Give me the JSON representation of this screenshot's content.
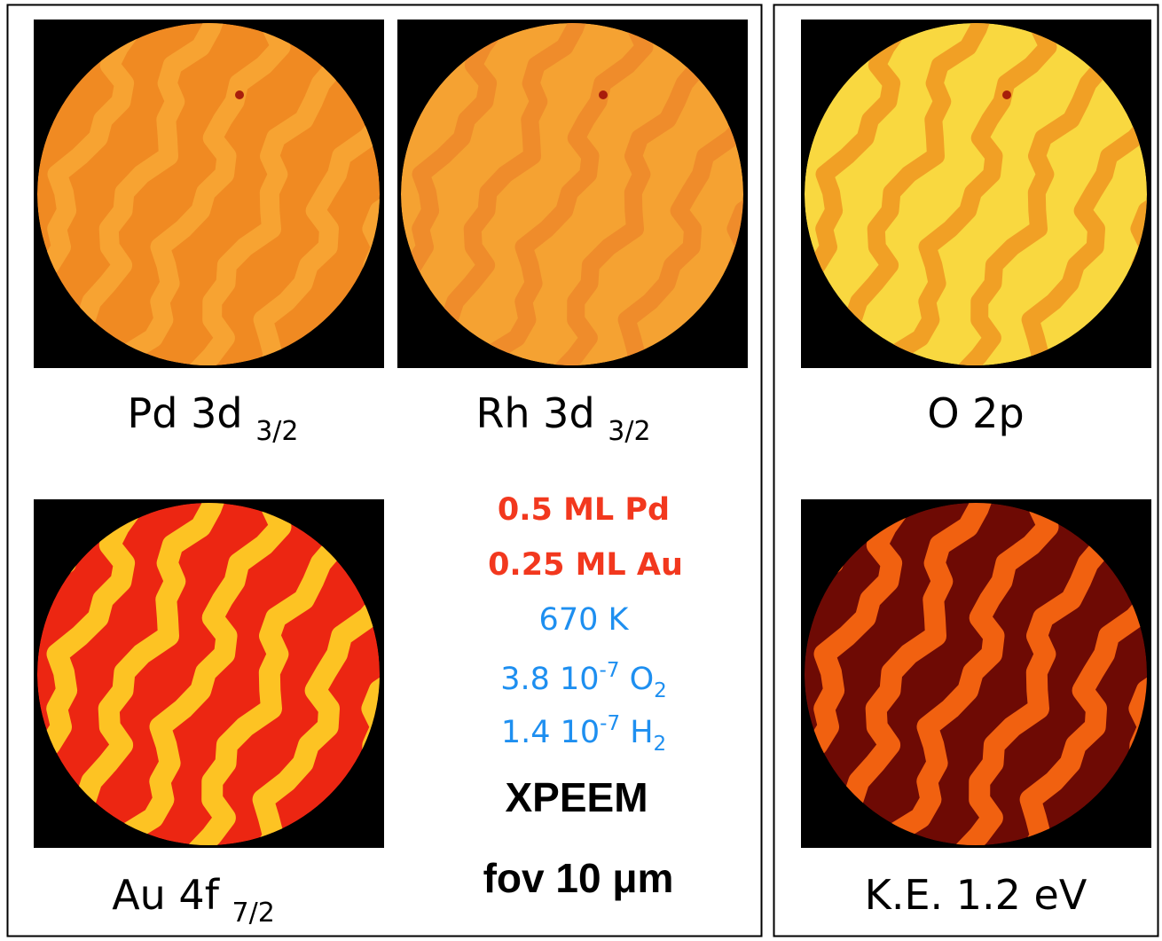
{
  "images": [
    {
      "label": "Pd 3d",
      "subscript": "3/2"
    },
    {
      "label": "Rh 3d",
      "subscript": "3/2"
    },
    {
      "label": "O 2p"
    },
    {
      "label": "Au 4f",
      "subscript": "7/2"
    },
    {
      "label": "K.E. 1.2 eV"
    }
  ],
  "conditions": {
    "coverage": [
      "0.5 ML Pd",
      "0.25 ML Au"
    ],
    "temperature": "670 K",
    "pressures": [
      {
        "value": "3.8 10",
        "exponent": "-7",
        "gas": "O",
        "gas_subscript": "2"
      },
      {
        "value": "1.4 10",
        "exponent": "-7",
        "gas": "H",
        "gas_subscript": "2"
      }
    ],
    "technique": "XPEEM",
    "field_of_view": "fov 10 μm"
  }
}
